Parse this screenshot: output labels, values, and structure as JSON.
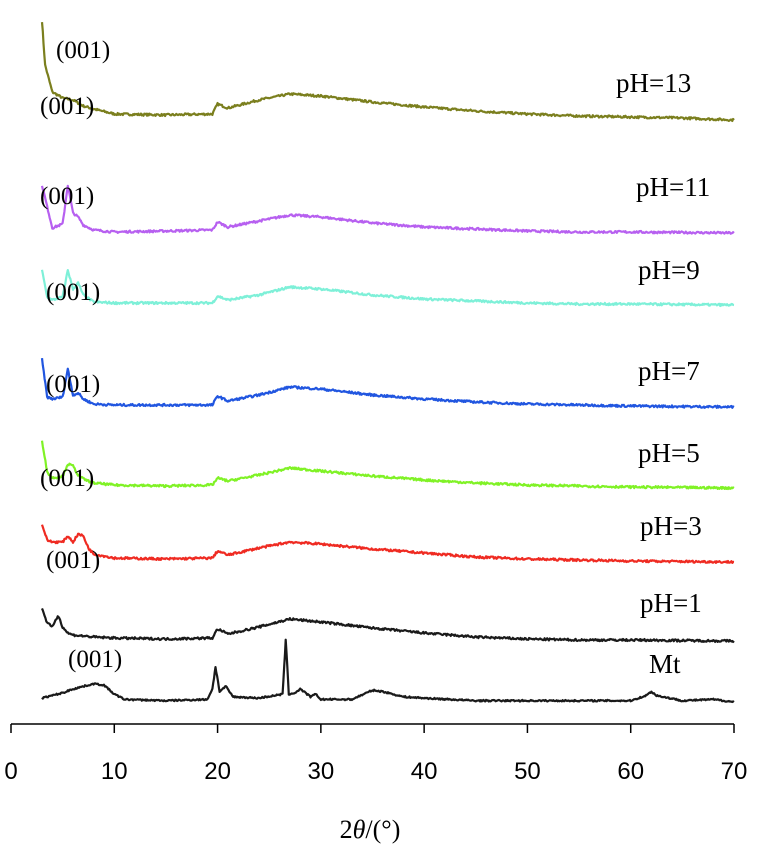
{
  "chart_data": {
    "type": "line",
    "xlabel_parts": [
      "2",
      "θ",
      "/(°)"
    ],
    "xlim": [
      0,
      70
    ],
    "xticks": [
      0,
      10,
      20,
      30,
      40,
      50,
      60,
      70
    ],
    "y_axis_shown": false,
    "grid": false,
    "peak_annotation": "(001)",
    "colors": {
      "Mt": "#1a1a1a",
      "pH=1": "#1a1a1a",
      "pH=3": "#ef2b22",
      "pH=5": "#80f226",
      "pH=7": "#2156e0",
      "pH=9": "#7ef0d8",
      "pH=11": "#b760f0",
      "pH=13": "#7b7f1e"
    },
    "series": [
      {
        "name": "pH=13",
        "x": [
          3,
          3.3,
          4,
          5,
          6,
          7,
          8,
          10,
          15,
          19.5,
          20,
          21,
          24,
          27,
          30,
          35,
          40,
          45,
          50,
          55,
          60,
          65,
          70
        ],
        "y": [
          99,
          55,
          28,
          22,
          20,
          14,
          11,
          6,
          5,
          6,
          16,
          12,
          20,
          26,
          24,
          18,
          13,
          9,
          6,
          4,
          3,
          2,
          0
        ]
      },
      {
        "name": "pH=11",
        "x": [
          3,
          4,
          5,
          5.5,
          6,
          6.5,
          7,
          8,
          10,
          15,
          19.5,
          20,
          21,
          24,
          27,
          30,
          35,
          40,
          45,
          50,
          55,
          60,
          65,
          70
        ],
        "y": [
          48,
          5,
          9,
          48,
          20,
          16,
          8,
          3,
          1,
          2,
          3,
          11,
          6,
          12,
          18,
          16,
          10,
          6,
          4,
          2,
          1,
          1,
          0.5,
          0
        ]
      },
      {
        "name": "pH=9",
        "x": [
          3,
          3.5,
          4,
          5,
          5.5,
          6,
          6.5,
          7,
          8,
          10,
          15,
          19.5,
          20,
          21,
          24,
          27,
          30,
          35,
          40,
          45,
          50,
          55,
          60,
          65,
          70
        ],
        "y": [
          35,
          8,
          5,
          8,
          35,
          16,
          22,
          10,
          3,
          2,
          2,
          2,
          9,
          5,
          10,
          18,
          16,
          10,
          6,
          4,
          2,
          1,
          1,
          0.5,
          0
        ]
      },
      {
        "name": "pH=7",
        "x": [
          3,
          3.5,
          4,
          5,
          5.5,
          6,
          6.5,
          7,
          8,
          10,
          15,
          19.5,
          20,
          21,
          24,
          27,
          30,
          35,
          40,
          45,
          50,
          55,
          60,
          65,
          70
        ],
        "y": [
          48,
          10,
          8,
          10,
          38,
          12,
          14,
          8,
          3,
          2,
          2,
          2,
          11,
          6,
          12,
          20,
          18,
          12,
          8,
          5,
          3,
          2,
          1,
          0.5,
          0
        ]
      },
      {
        "name": "pH=5",
        "x": [
          3,
          3.5,
          4,
          5,
          5.5,
          6,
          6.5,
          7,
          8,
          10,
          15,
          19.5,
          20,
          21,
          24,
          27,
          30,
          35,
          40,
          45,
          50,
          55,
          60,
          65,
          70
        ],
        "y": [
          48,
          16,
          10,
          12,
          24,
          22,
          13,
          9,
          5,
          3,
          2,
          3,
          10,
          7,
          13,
          20,
          17,
          12,
          8,
          5,
          3,
          2,
          1,
          0.5,
          0
        ]
      },
      {
        "name": "pH=3",
        "x": [
          3,
          3.5,
          4,
          5,
          5.5,
          6,
          6.5,
          7,
          7.5,
          8,
          10,
          15,
          19.5,
          20,
          21,
          24,
          27,
          30,
          35,
          40,
          45,
          50,
          55,
          60,
          65,
          70
        ],
        "y": [
          38,
          22,
          20,
          20,
          26,
          20,
          28,
          26,
          14,
          8,
          4,
          3,
          4,
          11,
          7,
          14,
          20,
          18,
          13,
          9,
          5,
          3,
          2,
          1,
          0.5,
          0
        ]
      },
      {
        "name": "pH=1",
        "x": [
          3,
          3.5,
          4,
          4.3,
          4.6,
          5,
          5.5,
          6,
          7,
          8,
          10,
          15,
          19.5,
          20,
          21,
          24,
          27,
          30,
          35,
          40,
          45,
          50,
          55,
          60,
          65,
          70
        ],
        "y": [
          33,
          18,
          14,
          21,
          25,
          14,
          8,
          6,
          5,
          4,
          3,
          2,
          3,
          12,
          7,
          14,
          22,
          19,
          13,
          8,
          4,
          2,
          1,
          1,
          0.5,
          0
        ]
      },
      {
        "name": "Mt",
        "x": [
          3,
          4,
          5,
          6,
          7,
          8,
          9,
          10,
          11,
          15,
          19,
          19.5,
          19.8,
          20.2,
          20.8,
          21.5,
          24,
          26.3,
          26.6,
          26.9,
          27.5,
          28,
          29,
          29.5,
          30,
          33,
          35,
          36,
          38,
          40,
          45,
          50,
          55,
          60,
          61.5,
          62,
          62.5,
          65,
          68,
          70
        ],
        "y": [
          3,
          5,
          7,
          10,
          12,
          14,
          13,
          6,
          2,
          1,
          2,
          10,
          27,
          8,
          12,
          4,
          3,
          6,
          48,
          6,
          7,
          10,
          4,
          6,
          2,
          2,
          9,
          8,
          4,
          3,
          1,
          1,
          1,
          1,
          5,
          8,
          5,
          1,
          2,
          0
        ]
      }
    ],
    "annotations": [
      {
        "text": "(001)",
        "series": "pH=13"
      },
      {
        "text": "(001)",
        "series": "pH=11"
      },
      {
        "text": "(001)",
        "series": "pH=9"
      },
      {
        "text": "(001)",
        "series": "pH=7"
      },
      {
        "text": "(001)",
        "series": "pH=5"
      },
      {
        "text": "(001)",
        "series": "pH=3"
      },
      {
        "text": "(001)",
        "series": "pH=1"
      },
      {
        "text": "(001)",
        "series": "Mt"
      }
    ]
  }
}
